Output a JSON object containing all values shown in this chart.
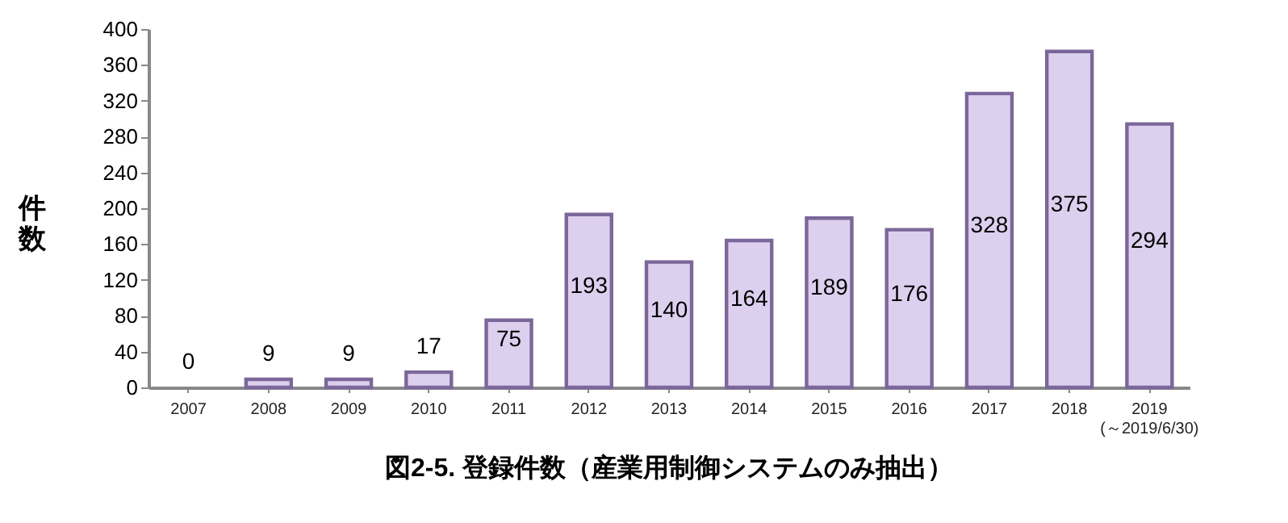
{
  "chart_data": {
    "type": "bar",
    "title": "図2-5. 登録件数（産業用制御システムのみ抽出）",
    "ylabel": "件数",
    "categories": [
      "2007",
      "2008",
      "2009",
      "2010",
      "2011",
      "2012",
      "2013",
      "2014",
      "2015",
      "2016",
      "2017",
      "2018",
      "2019\n(～2019/6/30)"
    ],
    "values": [
      0,
      9,
      9,
      17,
      75,
      193,
      140,
      164,
      189,
      176,
      328,
      375,
      294
    ],
    "color": "#dcd0ee",
    "ylim": [
      0,
      400
    ],
    "yticks": [
      0,
      40,
      80,
      120,
      160,
      200,
      240,
      280,
      320,
      360,
      400
    ],
    "data_labels": true
  }
}
